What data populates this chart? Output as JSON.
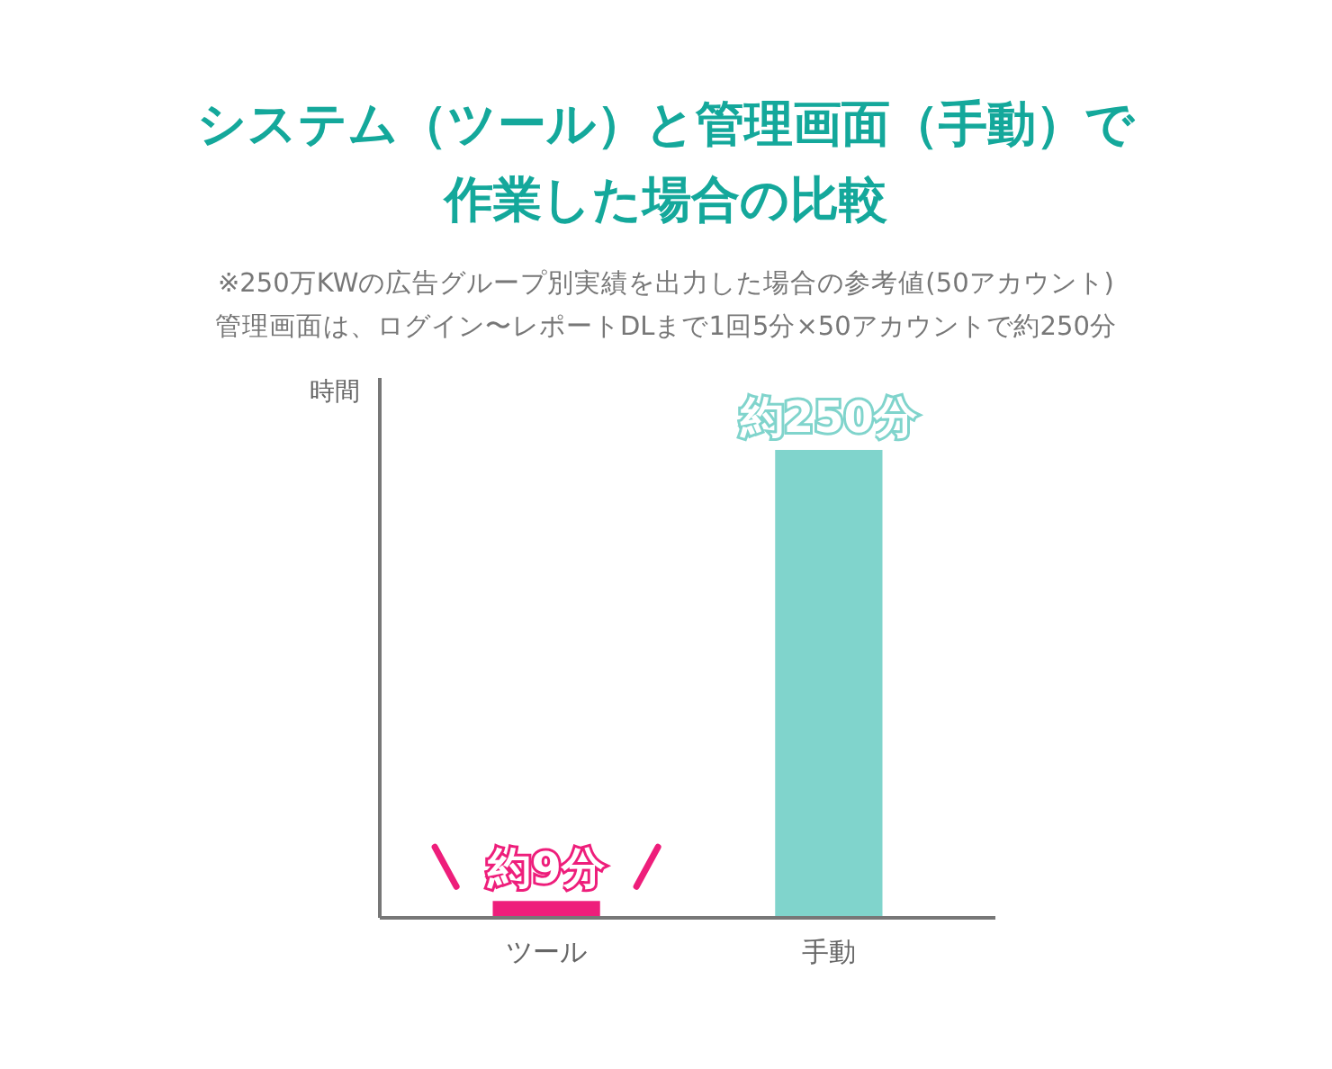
{
  "chart_data": {
    "type": "bar",
    "title": "システム（ツール）と管理画面（手動）で作業した場合の比較",
    "subtitle": "※250万KWの広告グループ別実績を出力した場合の参考値(50アカウント)",
    "annotations": [
      "管理画面は、ログイン〜レポートDLまで1回5分×50アカウントで約250分"
    ],
    "ylabel": "時間",
    "categories": [
      "ツール",
      "手動"
    ],
    "values": [
      9,
      250
    ],
    "colors": [
      "#ee1e7b",
      "#80d4cc"
    ],
    "value_labels": [
      "約9分",
      "約250分"
    ]
  }
}
